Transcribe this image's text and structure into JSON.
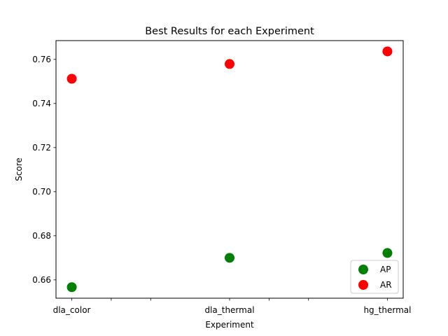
{
  "chart_data": {
    "type": "scatter",
    "title": "Best Results for each Experiment",
    "xlabel": "Experiment",
    "ylabel": "Score",
    "categories": [
      "dla_color",
      "dla_thermal",
      "hg_thermal"
    ],
    "xlim": [
      -0.1,
      2.1
    ],
    "ylim": [
      0.6517,
      0.7685
    ],
    "y_ticks": [
      0.66,
      0.68,
      0.7,
      0.72,
      0.74,
      0.76
    ],
    "y_tick_labels": [
      "0.66",
      "0.68",
      "0.70",
      "0.72",
      "0.74",
      "0.76"
    ],
    "minor_x_ticks": [
      0.25,
      0.5,
      1.25,
      1.5
    ],
    "series": [
      {
        "name": "AP",
        "color": "#008000",
        "values": [
          0.6567,
          0.67,
          0.6722
        ]
      },
      {
        "name": "AR",
        "color": "#ff0000",
        "values": [
          0.7512,
          0.7579,
          0.7636
        ]
      }
    ],
    "legend": {
      "position": "lower right",
      "entries": [
        "AP",
        "AR"
      ]
    },
    "grid": false
  }
}
